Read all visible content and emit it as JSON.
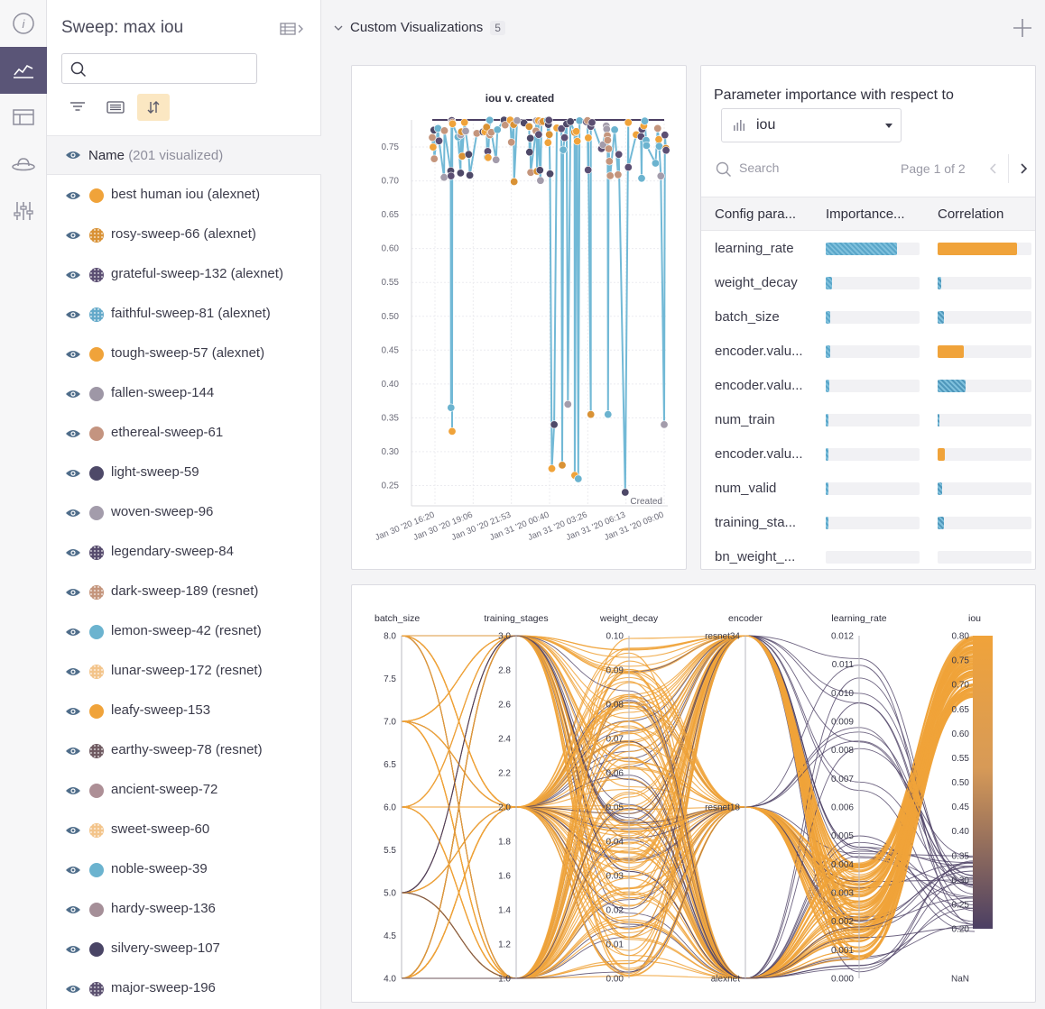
{
  "sidebar": {
    "title": "Sweep: max iou",
    "search_placeholder": "",
    "header_name": "Name",
    "header_count": "(201 visualized)",
    "runs": [
      {
        "name": "best human iou (alexnet)",
        "color": "#f0a33a",
        "pattern": "solid"
      },
      {
        "name": "rosy-sweep-66 (alexnet)",
        "color": "#d99235",
        "pattern": "dots"
      },
      {
        "name": "grateful-sweep-132 (alexnet)",
        "color": "#5c4f73",
        "pattern": "dots"
      },
      {
        "name": "faithful-sweep-81 (alexnet)",
        "color": "#63a9c9",
        "pattern": "dots"
      },
      {
        "name": "tough-sweep-57 (alexnet)",
        "color": "#f0a33a",
        "pattern": "solid"
      },
      {
        "name": "fallen-sweep-144",
        "color": "#9e97a6",
        "pattern": "solid"
      },
      {
        "name": "ethereal-sweep-61",
        "color": "#c49480",
        "pattern": "solid"
      },
      {
        "name": "light-sweep-59",
        "color": "#4e4968",
        "pattern": "solid"
      },
      {
        "name": "woven-sweep-96",
        "color": "#a39cab",
        "pattern": "solid"
      },
      {
        "name": "legendary-sweep-84",
        "color": "#564b6d",
        "pattern": "dots"
      },
      {
        "name": "dark-sweep-189 (resnet)",
        "color": "#c4957c",
        "pattern": "dots"
      },
      {
        "name": "lemon-sweep-42 (resnet)",
        "color": "#6bb3cf",
        "pattern": "solid"
      },
      {
        "name": "lunar-sweep-172 (resnet)",
        "color": "#f3c48a",
        "pattern": "dots"
      },
      {
        "name": "leafy-sweep-153",
        "color": "#f0a33a",
        "pattern": "solid"
      },
      {
        "name": "earthy-sweep-78 (resnet)",
        "color": "#6f5a61",
        "pattern": "dots"
      },
      {
        "name": "ancient-sweep-72",
        "color": "#ad8f96",
        "pattern": "solid"
      },
      {
        "name": "sweet-sweep-60",
        "color": "#f3c48a",
        "pattern": "dots"
      },
      {
        "name": "noble-sweep-39",
        "color": "#6bb3cf",
        "pattern": "solid"
      },
      {
        "name": "hardy-sweep-136",
        "color": "#a58f98",
        "pattern": "solid"
      },
      {
        "name": "silvery-sweep-107",
        "color": "#4a4566",
        "pattern": "solid"
      },
      {
        "name": "major-sweep-196",
        "color": "#5c5170",
        "pattern": "dots"
      }
    ]
  },
  "section": {
    "title": "Custom Visualizations",
    "count": "5"
  },
  "scatter": {
    "chart_data": {
      "type": "line",
      "title": "iou v. created",
      "xlabel": "Created",
      "ylabel": "",
      "ylim": [
        0.22,
        0.79
      ],
      "yticks": [
        "0.75",
        "0.70",
        "0.65",
        "0.60",
        "0.55",
        "0.50",
        "0.45",
        "0.40",
        "0.35",
        "0.30",
        "0.25"
      ],
      "xticks": [
        "Jan 30 '20 16:20",
        "Jan 30 '20 19:06",
        "Jan 30 '20 21:53",
        "Jan 31 '20 00:40",
        "Jan 31 '20 03:26",
        "Jan 31 '20 06:13",
        "Jan 31 '20 09:00"
      ],
      "series": [
        {
          "name": "max iou",
          "values": [
            0.79,
            0.79,
            0.79,
            0.79,
            0.79,
            0.79,
            0.79
          ]
        }
      ],
      "low_points": [
        {
          "x": "Jan 30 '20 17:30",
          "y": 0.365
        },
        {
          "x": "Jan 30 '20 17:35",
          "y": 0.33
        },
        {
          "x": "Jan 31 '20 00:50",
          "y": 0.275
        },
        {
          "x": "Jan 31 '20 01:00",
          "y": 0.34
        },
        {
          "x": "Jan 31 '20 01:35",
          "y": 0.28
        },
        {
          "x": "Jan 31 '20 02:00",
          "y": 0.37
        },
        {
          "x": "Jan 31 '20 02:30",
          "y": 0.265
        },
        {
          "x": "Jan 31 '20 02:45",
          "y": 0.26
        },
        {
          "x": "Jan 31 '20 03:40",
          "y": 0.355
        },
        {
          "x": "Jan 31 '20 04:55",
          "y": 0.355
        },
        {
          "x": "Jan 31 '20 06:10",
          "y": 0.24
        },
        {
          "x": "Jan 31 '20 09:00",
          "y": 0.34
        }
      ]
    }
  },
  "importance": {
    "title": "Parameter importance with respect to",
    "metric": "iou",
    "search_placeholder": "Search",
    "page": "Page 1 of 2",
    "columns": [
      "Config para...",
      "Importance...",
      "Correlation"
    ],
    "rows": [
      {
        "param": "learning_rate",
        "importance": 0.76,
        "correlation": 0.85,
        "corr_color": "#f0a33a"
      },
      {
        "param": "weight_decay",
        "importance": 0.07,
        "correlation": -0.04,
        "corr_color": "#5aa6c9"
      },
      {
        "param": "batch_size",
        "importance": 0.05,
        "correlation": -0.07,
        "corr_color": "#5aa6c9"
      },
      {
        "param": "encoder.valu...",
        "importance": 0.05,
        "correlation": 0.28,
        "corr_color": "#f0a33a"
      },
      {
        "param": "encoder.valu...",
        "importance": 0.04,
        "correlation": -0.3,
        "corr_color": "#5aa6c9"
      },
      {
        "param": "num_train",
        "importance": 0.03,
        "correlation": -0.01,
        "corr_color": "#5aa6c9"
      },
      {
        "param": "encoder.valu...",
        "importance": 0.02,
        "correlation": 0.08,
        "corr_color": "#f0a33a"
      },
      {
        "param": "num_valid",
        "importance": 0.01,
        "correlation": -0.05,
        "corr_color": "#5aa6c9"
      },
      {
        "param": "training_sta...",
        "importance": 0.01,
        "correlation": -0.07,
        "corr_color": "#5aa6c9"
      },
      {
        "param": "bn_weight_...",
        "importance": 0.0,
        "correlation": 0.0,
        "corr_color": "#5aa6c9"
      }
    ]
  },
  "parallel": {
    "chart_data": {
      "type": "parallel_coordinates",
      "axes": [
        {
          "name": "batch_size",
          "ticks": [
            "8.0",
            "7.5",
            "7.0",
            "6.5",
            "6.0",
            "5.5",
            "5.0",
            "4.5",
            "4.0"
          ]
        },
        {
          "name": "training_stages",
          "ticks": [
            "3.0",
            "2.8",
            "2.6",
            "2.4",
            "2.2",
            "2.0",
            "1.8",
            "1.6",
            "1.4",
            "1.2",
            "1.0"
          ]
        },
        {
          "name": "weight_decay",
          "ticks": [
            "0.10",
            "0.09",
            "0.08",
            "0.07",
            "0.06",
            "0.05",
            "0.04",
            "0.03",
            "0.02",
            "0.01",
            "0.00"
          ]
        },
        {
          "name": "encoder",
          "ticks": [
            "resnet34",
            "resnet18",
            "alexnet"
          ]
        },
        {
          "name": "learning_rate",
          "ticks": [
            "0.012",
            "0.011",
            "0.010",
            "0.009",
            "0.008",
            "0.007",
            "0.006",
            "0.005",
            "0.004",
            "0.003",
            "0.002",
            "0.001",
            "0.000"
          ]
        },
        {
          "name": "iou",
          "ticks": [
            "0.80",
            "0.75",
            "0.70",
            "0.65",
            "0.60",
            "0.55",
            "0.50",
            "0.45",
            "0.40",
            "0.35",
            "0.30",
            "0.25",
            "0.20",
            "NaN"
          ]
        }
      ],
      "color_scale": {
        "high": "#f0a33a",
        "low": "#4b3f63"
      }
    }
  }
}
